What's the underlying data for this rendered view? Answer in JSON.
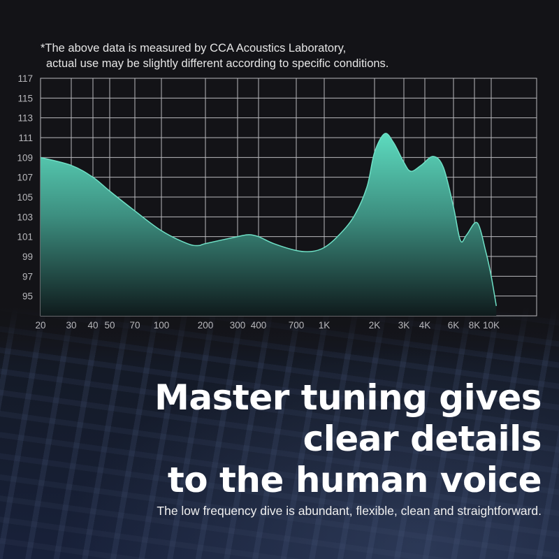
{
  "note": {
    "line1": "*The above data is measured by CCA Acoustics Laboratory,",
    "line2": "actual use may be slightly different according to specific conditions."
  },
  "chart_data": {
    "type": "area",
    "title": "",
    "xlabel": "",
    "ylabel": "",
    "x_scale": "log",
    "grid": true,
    "ylim": [
      93,
      117
    ],
    "xlim": [
      20,
      20000
    ],
    "y_ticks": [
      "117",
      "115",
      "113",
      "111",
      "109",
      "107",
      "105",
      "103",
      "101",
      "99",
      "97",
      "95"
    ],
    "x_ticks": [
      {
        "value": 20,
        "label": "20"
      },
      {
        "value": 30,
        "label": "30"
      },
      {
        "value": 40,
        "label": "40"
      },
      {
        "value": 50,
        "label": "50"
      },
      {
        "value": 70,
        "label": "70"
      },
      {
        "value": 100,
        "label": "100"
      },
      {
        "value": 200,
        "label": "200"
      },
      {
        "value": 300,
        "label": "300"
      },
      {
        "value": 400,
        "label": "400"
      },
      {
        "value": 700,
        "label": "700"
      },
      {
        "value": 1000,
        "label": "1K"
      },
      {
        "value": 2000,
        "label": "2K"
      },
      {
        "value": 3000,
        "label": "3K"
      },
      {
        "value": 4000,
        "label": "4K"
      },
      {
        "value": 6000,
        "label": "6K"
      },
      {
        "value": 8000,
        "label": "8K"
      },
      {
        "value": 10000,
        "label": "10K"
      }
    ],
    "x": [
      20,
      30,
      40,
      50,
      70,
      100,
      150,
      180,
      200,
      300,
      350,
      400,
      500,
      700,
      850,
      1000,
      1200,
      1500,
      1800,
      2000,
      2300,
      2600,
      3000,
      3300,
      3800,
      4500,
      5200,
      6000,
      6600,
      7200,
      8300,
      9300,
      10000,
      10700
    ],
    "y": [
      109,
      108.2,
      107,
      105.6,
      103.6,
      101.6,
      100.3,
      100.1,
      100.3,
      101.0,
      101.2,
      101.0,
      100.3,
      99.6,
      99.5,
      99.9,
      101,
      103,
      106,
      109.5,
      111.4,
      110.5,
      108.5,
      107.6,
      108.2,
      109.1,
      108,
      104,
      100.6,
      101.2,
      102.4,
      99.5,
      97,
      94
    ],
    "colors": {
      "line": "#6fe0c6",
      "fill_top": "#5ddbbf",
      "fill_bottom": "#0f1a1c",
      "grid": "#b9b9bd"
    }
  },
  "headline": [
    "Master tuning gives",
    "clear details",
    "to the human voice"
  ],
  "subtitle": "The low frequency dive is abundant, flexible, clean and straightforward."
}
